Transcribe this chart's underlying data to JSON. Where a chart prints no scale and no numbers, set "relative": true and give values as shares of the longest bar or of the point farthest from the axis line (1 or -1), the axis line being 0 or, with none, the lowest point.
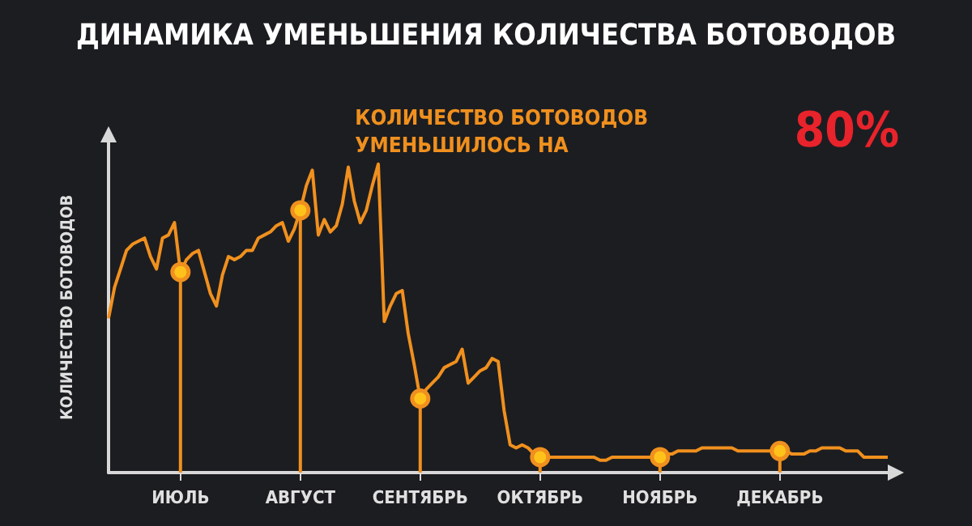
{
  "chart_data": {
    "type": "line",
    "title": "ДИНАМИКА УМЕНЬШЕНИЯ КОЛИЧЕСТВА БОТОВОДОВ",
    "ylabel": "КОЛИЧЕСТВО БОТОВОДОВ",
    "annotations": [
      "КОЛИЧЕСТВО БОТОВОДОВ\nУМЕНЬШИЛОСЬ НА",
      "80%"
    ],
    "relative": true,
    "categories": [
      null,
      null,
      null,
      null,
      null,
      null,
      null,
      null,
      null,
      null,
      null,
      null,
      "ИЮЛЬ",
      null,
      null,
      null,
      null,
      null,
      null,
      null,
      null,
      null,
      null,
      null,
      null,
      null,
      null,
      null,
      null,
      null,
      null,
      null,
      "АВГУСТ",
      null,
      null,
      null,
      null,
      null,
      null,
      null,
      null,
      null,
      null,
      null,
      null,
      null,
      null,
      null,
      null,
      null,
      null,
      null,
      "СЕНТЯБРЬ",
      null,
      null,
      null,
      null,
      null,
      null,
      null,
      null,
      null,
      null,
      null,
      null,
      null,
      null,
      null,
      null,
      null,
      null,
      null,
      "ОКТЯБРЬ",
      null,
      null,
      null,
      null,
      null,
      null,
      null,
      null,
      null,
      null,
      null,
      null,
      null,
      null,
      null,
      null,
      null,
      null,
      null,
      "НОЯБРЬ",
      null,
      null,
      null,
      null,
      null,
      null,
      null,
      null,
      null,
      null,
      null,
      null,
      null,
      null,
      null,
      null,
      null,
      null,
      null,
      "ДЕКАБРЬ",
      null,
      null,
      null,
      null,
      null,
      null,
      null,
      null,
      null,
      null,
      null,
      null,
      null,
      null,
      null,
      null,
      null,
      null
    ],
    "series": [
      {
        "color": "#f0901e",
        "marker": "none",
        "values": [
          0.5,
          0.6,
          0.66,
          0.72,
          0.74,
          0.75,
          0.76,
          0.7,
          0.66,
          0.76,
          0.77,
          0.81,
          0.65,
          0.69,
          0.71,
          0.72,
          0.65,
          0.58,
          0.54,
          0.64,
          0.7,
          0.69,
          0.7,
          0.72,
          0.72,
          0.76,
          0.77,
          0.78,
          0.8,
          0.81,
          0.75,
          0.79,
          0.85,
          0.93,
          0.98,
          0.77,
          0.82,
          0.78,
          0.8,
          0.87,
          0.99,
          0.88,
          0.81,
          0.85,
          0.93,
          1.0,
          0.49,
          0.54,
          0.58,
          0.59,
          0.45,
          0.35,
          0.24,
          0.27,
          0.29,
          0.31,
          0.34,
          0.35,
          0.36,
          0.4,
          0.29,
          0.31,
          0.33,
          0.34,
          0.37,
          0.36,
          0.2,
          0.09,
          0.08,
          0.09,
          0.08,
          0.06,
          0.05,
          0.05,
          0.05,
          0.05,
          0.05,
          0.05,
          0.05,
          0.05,
          0.05,
          0.05,
          0.04,
          0.04,
          0.05,
          0.05,
          0.05,
          0.05,
          0.05,
          0.05,
          0.05,
          0.05,
          0.05,
          0.06,
          0.06,
          0.07,
          0.07,
          0.07,
          0.07,
          0.08,
          0.08,
          0.08,
          0.08,
          0.08,
          0.08,
          0.07,
          0.07,
          0.07,
          0.07,
          0.07,
          0.07,
          0.07,
          0.07,
          0.07,
          0.06,
          0.06,
          0.06,
          0.07,
          0.07,
          0.08,
          0.08,
          0.08,
          0.08,
          0.07,
          0.07,
          0.07,
          0.05,
          0.05,
          0.05,
          0.05,
          0.05
        ]
      },
      {
        "type": "lollipop",
        "color": "#f0901e",
        "marker": "circle",
        "x": [
          "ИЮЛЬ",
          "АВГУСТ",
          "СЕНТЯБРЬ",
          "ОКТЯБРЬ",
          "НОЯБРЬ",
          "ДЕКАБРЬ"
        ],
        "values": [
          0.65,
          0.85,
          0.24,
          0.05,
          0.05,
          0.07
        ]
      }
    ]
  }
}
